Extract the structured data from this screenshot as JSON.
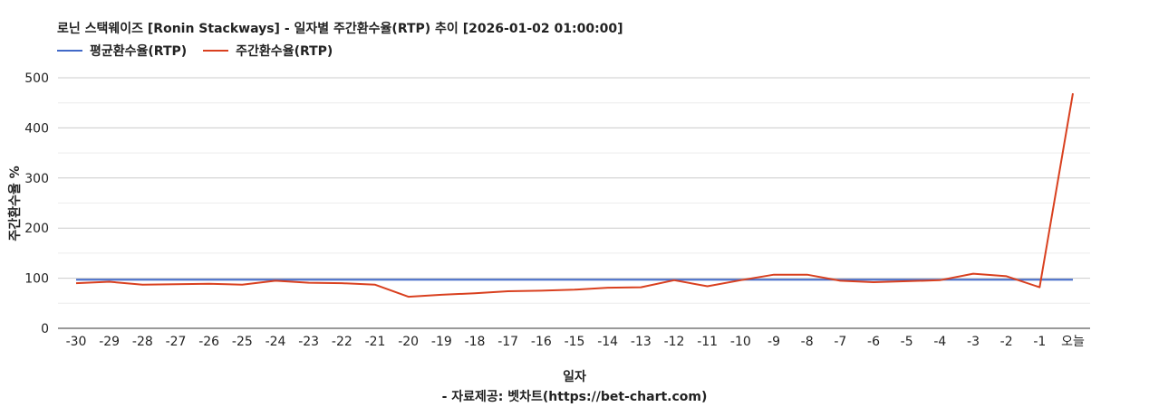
{
  "chart_data": {
    "type": "line",
    "title": "로닌 스택웨이즈 [Ronin Stackways] - 일자별 주간환수율(RTP) 추이 [2026-01-02 01:00:00]",
    "xlabel": "일자",
    "ylabel": "주간환수율 %",
    "source": "- 자료제공: 벳차트(https://bet-chart.com)",
    "categories": [
      "-30",
      "-29",
      "-28",
      "-27",
      "-26",
      "-25",
      "-24",
      "-23",
      "-22",
      "-21",
      "-20",
      "-19",
      "-18",
      "-17",
      "-16",
      "-15",
      "-14",
      "-13",
      "-12",
      "-11",
      "-10",
      "-9",
      "-8",
      "-7",
      "-6",
      "-5",
      "-4",
      "-3",
      "-2",
      "-1",
      "오늘"
    ],
    "ylim": [
      0,
      500
    ],
    "yticks": [
      0,
      100,
      200,
      300,
      400,
      500
    ],
    "grid": true,
    "legend_position": "top-left",
    "series": [
      {
        "name": "평균환수율(RTP)",
        "color": "#4169c8",
        "values": [
          97,
          97,
          97,
          97,
          97,
          97,
          97,
          97,
          97,
          97,
          97,
          97,
          97,
          97,
          97,
          97,
          97,
          97,
          97,
          97,
          97,
          97,
          97,
          97,
          97,
          97,
          97,
          97,
          97,
          97,
          97
        ]
      },
      {
        "name": "주간환수율(RTP)",
        "color": "#d9401f",
        "values": [
          90,
          93,
          87,
          88,
          89,
          87,
          95,
          91,
          90,
          87,
          63,
          67,
          70,
          74,
          75,
          77,
          81,
          82,
          96,
          84,
          96,
          107,
          107,
          95,
          92,
          94,
          96,
          109,
          104,
          82,
          469
        ]
      }
    ]
  }
}
